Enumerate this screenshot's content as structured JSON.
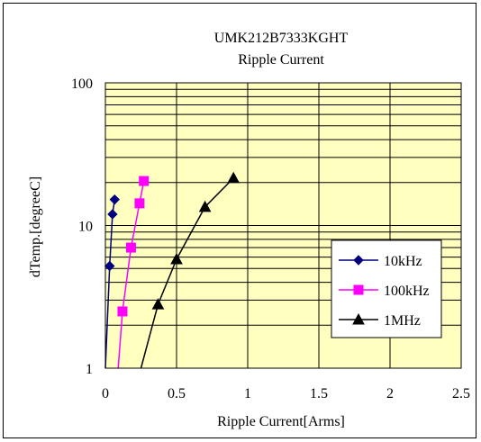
{
  "chart_data": {
    "type": "line",
    "title": "UMK212B7333KGHT",
    "subtitle": "Ripple Current",
    "xlabel": "Ripple Current[Arms]",
    "ylabel": "dTemp.[degreeC]",
    "xlim": [
      0,
      2.5
    ],
    "ylim": [
      1,
      100
    ],
    "yscale": "log",
    "x_ticks": [
      "0",
      "0.5",
      "1",
      "1.5",
      "2",
      "2.5"
    ],
    "y_ticks": [
      "1",
      "10",
      "100"
    ],
    "grid": true,
    "legend_position": "right",
    "plot_background": "#ffffc0",
    "series": [
      {
        "name": "10kHz",
        "color": "#000080",
        "marker": "diamond",
        "points": [
          [
            0.0,
            0.0
          ],
          [
            0.03,
            5.2
          ],
          [
            0.05,
            12.0
          ],
          [
            0.065,
            15.2
          ]
        ]
      },
      {
        "name": "100kHz",
        "color": "#ff00ff",
        "marker": "square",
        "points": [
          [
            0.09,
            0.0
          ],
          [
            0.12,
            2.5
          ],
          [
            0.18,
            7.0
          ],
          [
            0.24,
            14.3
          ],
          [
            0.27,
            20.5
          ]
        ]
      },
      {
        "name": "1MHz",
        "color": "#000000",
        "marker": "triangle",
        "points": [
          [
            0.25,
            0.0
          ],
          [
            0.37,
            2.8
          ],
          [
            0.5,
            5.8
          ],
          [
            0.7,
            13.5
          ],
          [
            0.9,
            21.5
          ]
        ]
      }
    ]
  }
}
